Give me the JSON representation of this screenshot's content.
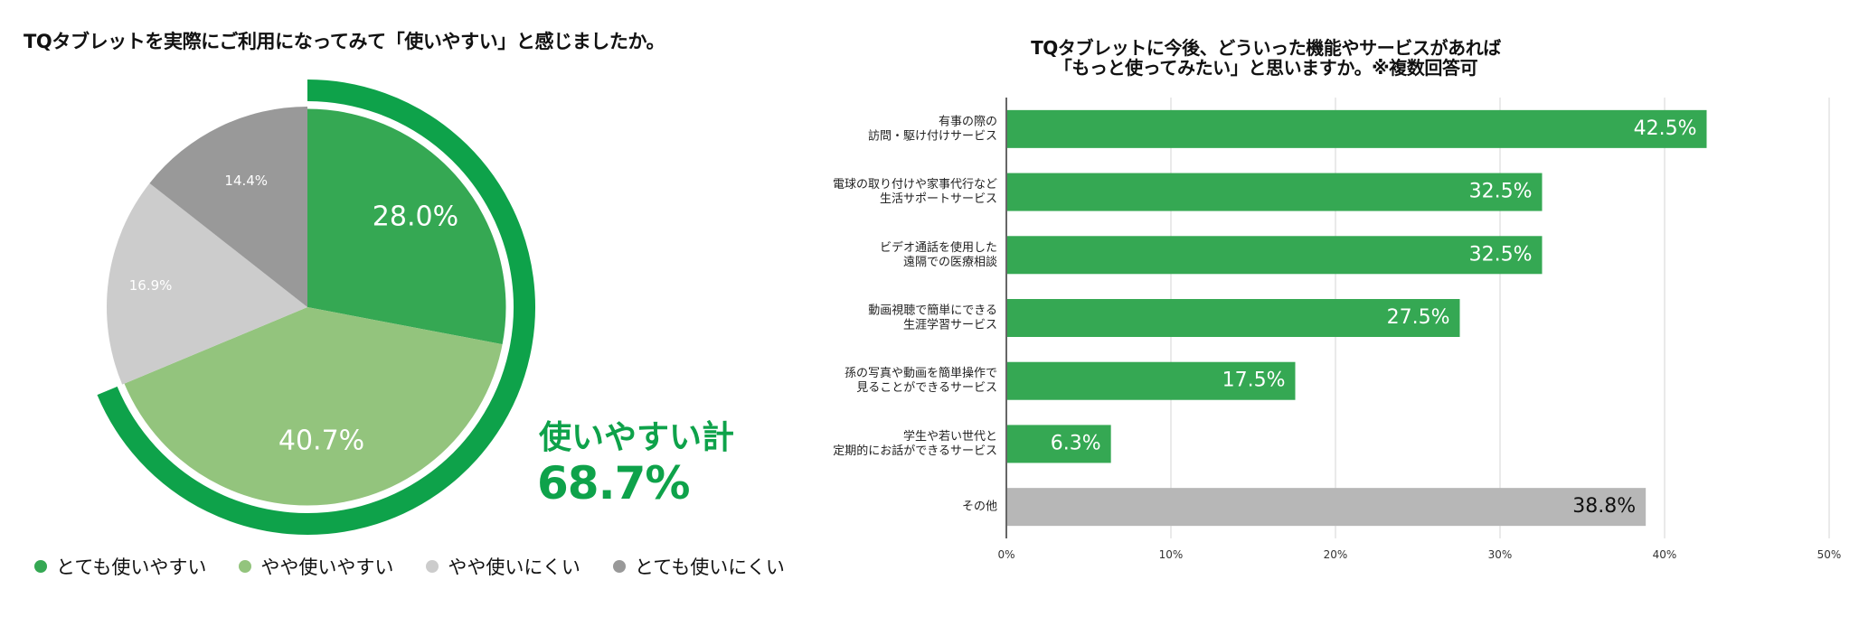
{
  "chart_data": [
    {
      "type": "pie",
      "title": "TQタブレットを実際にご利用になってみて「使いやすい」と感じましたか。",
      "categories": [
        "とても使いやすい",
        "やや使いやすい",
        "やや使いにくい",
        "とても使いにくい"
      ],
      "values": [
        28.0,
        40.7,
        16.9,
        14.4
      ],
      "value_labels": [
        "28.0%",
        "40.7%",
        "16.9%",
        "14.4%"
      ],
      "colors": [
        "#35a853",
        "#93c47d",
        "#cccccc",
        "#999999"
      ],
      "legend_position": "bottom",
      "annotation": {
        "label": "使いやすい計",
        "value": "68.7%",
        "color": "#0ea24a"
      }
    },
    {
      "type": "bar",
      "orientation": "horizontal",
      "title_lines": [
        "TQタブレットに今後、どういった機能やサービスがあれば",
        "「もっと使ってみたい」と思いますか。※複数回答可"
      ],
      "categories": [
        [
          "有事の際の",
          "訪問・駆け付けサービス"
        ],
        [
          "電球の取り付けや家事代行など",
          "生活サポートサービス"
        ],
        [
          "ビデオ通話を使用した",
          "遠隔での医療相談"
        ],
        [
          "動画視聴で簡単にできる",
          "生涯学習サービス"
        ],
        [
          "孫の写真や動画を簡単操作で",
          "見ることができるサービス"
        ],
        [
          "学生や若い世代と",
          "定期的にお話ができるサービス"
        ],
        [
          "その他"
        ]
      ],
      "values": [
        42.5,
        32.5,
        32.5,
        27.5,
        17.5,
        6.3,
        38.8
      ],
      "value_labels": [
        "42.5%",
        "32.5%",
        "32.5%",
        "27.5%",
        "17.5%",
        "6.3%",
        "38.8%"
      ],
      "bar_colors": [
        "#35a853",
        "#35a853",
        "#35a853",
        "#35a853",
        "#35a853",
        "#35a853",
        "#b7b7b7"
      ],
      "xlim": [
        0,
        50
      ],
      "xticks": [
        "0%",
        "10%",
        "20%",
        "30%",
        "40%",
        "50%"
      ],
      "grid": true
    }
  ]
}
